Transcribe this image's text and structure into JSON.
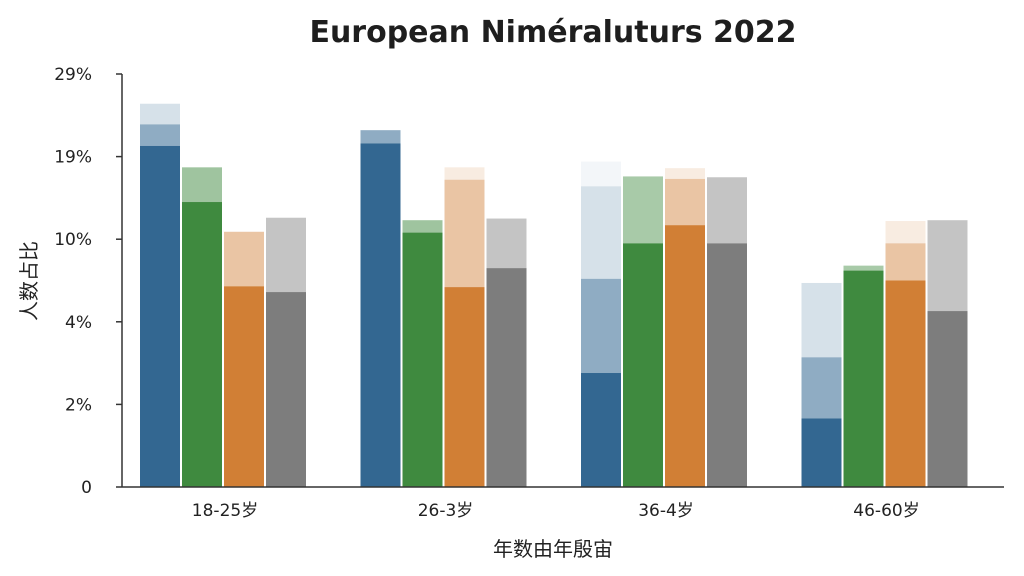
{
  "chart_data": {
    "type": "bar",
    "title": "European Niméraluturs 2022",
    "xlabel": "年数由年殷宙",
    "ylabel": "人数占比",
    "y_tick_labels": [
      "0",
      "2%",
      "4%",
      "10%",
      "19%",
      "29%"
    ],
    "ylim_ticks": [
      0,
      5
    ],
    "categories": [
      "18-25岁",
      "26-3岁",
      "36-4岁",
      "46-60岁"
    ],
    "grid": false,
    "legend": "none",
    "series": [
      {
        "color": "#336791",
        "segments": [
          [
            {
              "value": 4.13,
              "opacity": 1
            },
            {
              "value": 0.26,
              "opacity": 0.55
            },
            {
              "value": 0.25,
              "opacity": 0.2
            }
          ],
          [
            {
              "value": 4.16,
              "opacity": 1
            },
            {
              "value": 0.16,
              "opacity": 0.55
            }
          ],
          [
            {
              "value": 1.38,
              "opacity": 1
            },
            {
              "value": 1.14,
              "opacity": 0.55
            },
            {
              "value": 1.12,
              "opacity": 0.2
            },
            {
              "value": 0.3,
              "opacity": 0.06
            }
          ],
          [
            {
              "value": 0.83,
              "opacity": 1
            },
            {
              "value": 0.74,
              "opacity": 0.55
            },
            {
              "value": 0.9,
              "opacity": 0.2
            }
          ]
        ]
      },
      {
        "color": "#3f8a3f",
        "segments": [
          [
            {
              "value": 3.45,
              "opacity": 1
            },
            {
              "value": 0.42,
              "opacity": 0.5
            }
          ],
          [
            {
              "value": 3.08,
              "opacity": 1
            },
            {
              "value": 0.15,
              "opacity": 0.5
            }
          ],
          [
            {
              "value": 2.95,
              "opacity": 1
            },
            {
              "value": 0.81,
              "opacity": 0.45
            }
          ],
          [
            {
              "value": 2.62,
              "opacity": 1
            },
            {
              "value": 0.06,
              "opacity": 0.45
            }
          ]
        ]
      },
      {
        "color": "#d17f35",
        "segments": [
          [
            {
              "value": 2.43,
              "opacity": 1
            },
            {
              "value": 0.66,
              "opacity": 0.45
            }
          ],
          [
            {
              "value": 2.42,
              "opacity": 1
            },
            {
              "value": 1.3,
              "opacity": 0.45
            },
            {
              "value": 0.15,
              "opacity": 0.15
            }
          ],
          [
            {
              "value": 3.17,
              "opacity": 1
            },
            {
              "value": 0.56,
              "opacity": 0.45
            },
            {
              "value": 0.13,
              "opacity": 0.15
            }
          ],
          [
            {
              "value": 2.5,
              "opacity": 1
            },
            {
              "value": 0.45,
              "opacity": 0.45
            },
            {
              "value": 0.27,
              "opacity": 0.15
            }
          ]
        ]
      },
      {
        "color": "#7d7d7d",
        "segments": [
          [
            {
              "value": 2.36,
              "opacity": 1
            },
            {
              "value": 0.9,
              "opacity": 0.45
            }
          ],
          [
            {
              "value": 2.65,
              "opacity": 1
            },
            {
              "value": 0.6,
              "opacity": 0.45
            }
          ],
          [
            {
              "value": 2.95,
              "opacity": 1
            },
            {
              "value": 0.8,
              "opacity": 0.45
            }
          ],
          [
            {
              "value": 2.13,
              "opacity": 1
            },
            {
              "value": 1.1,
              "opacity": 0.45
            }
          ]
        ]
      }
    ]
  }
}
